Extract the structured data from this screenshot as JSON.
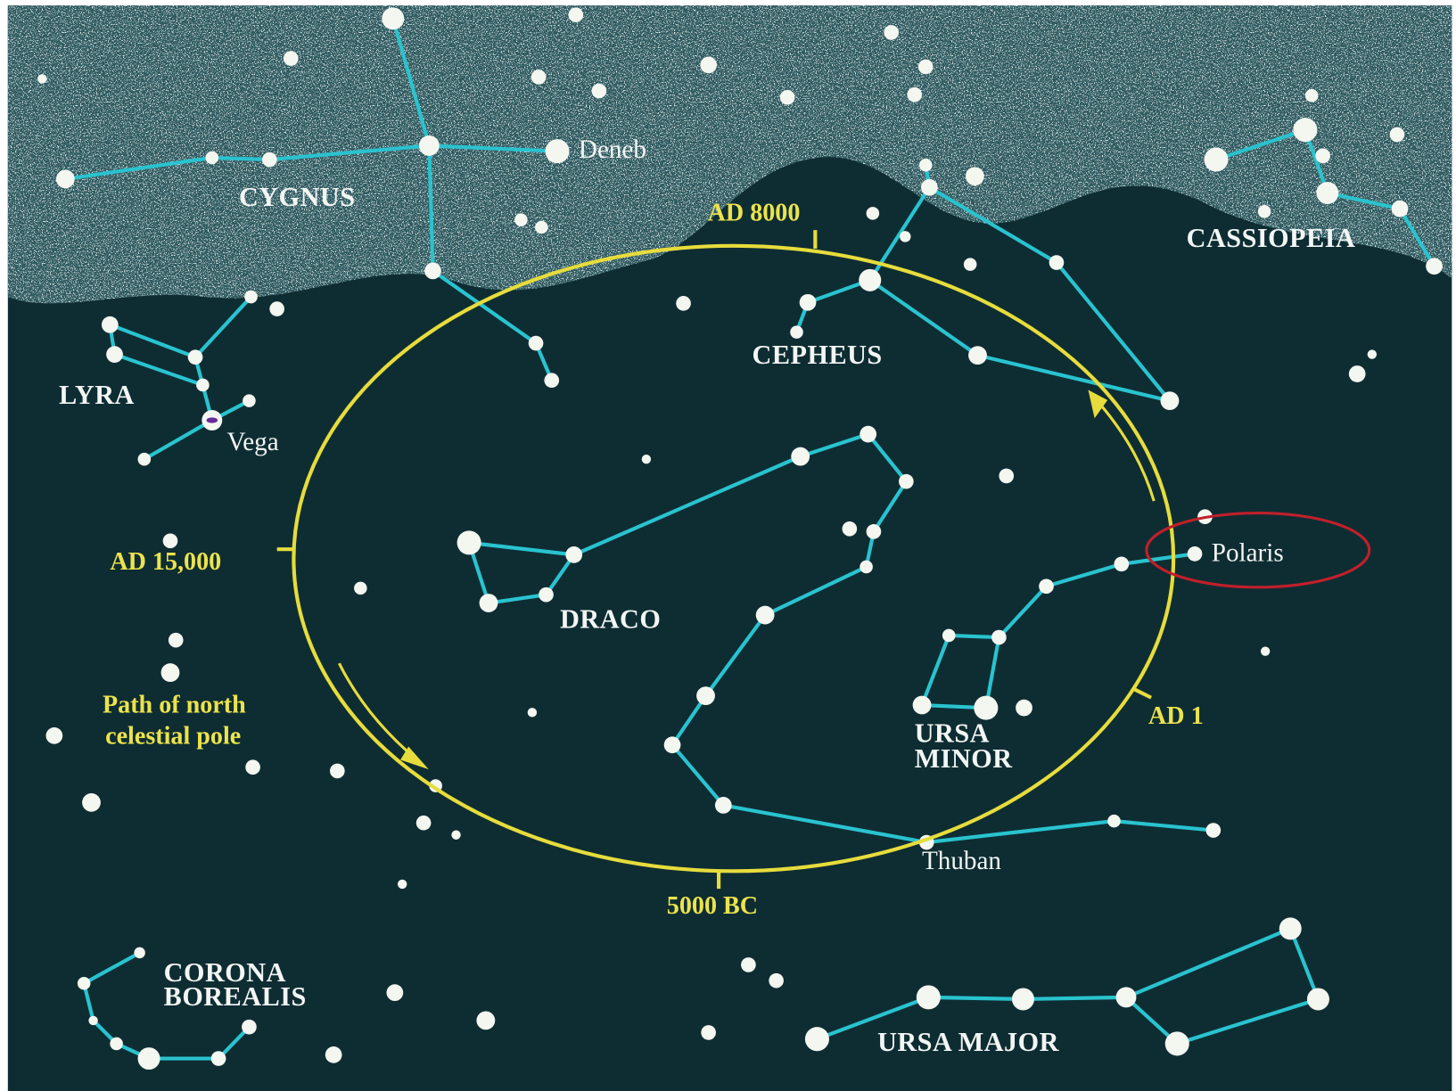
{
  "constellations": [
    {
      "lines": [
        "CYGNUS"
      ]
    },
    {
      "lines": [
        "LYRA"
      ]
    },
    {
      "lines": [
        "CEPHEUS"
      ]
    },
    {
      "lines": [
        "CASSIOPEIA"
      ]
    },
    {
      "lines": [
        "DRACO"
      ]
    },
    {
      "lines": [
        "URSA",
        "MINOR"
      ]
    },
    {
      "lines": [
        "CORONA",
        "BOREALIS"
      ]
    },
    {
      "lines": [
        "URSA MAJOR"
      ]
    }
  ],
  "stars": [
    "Deneb",
    "Vega",
    "Polaris",
    "Thuban"
  ],
  "precession_path": {
    "label": [
      "Path of north",
      "celestial pole"
    ],
    "dates": [
      "AD 8000",
      "AD 15,000",
      "5000 BC",
      "AD 1"
    ]
  }
}
